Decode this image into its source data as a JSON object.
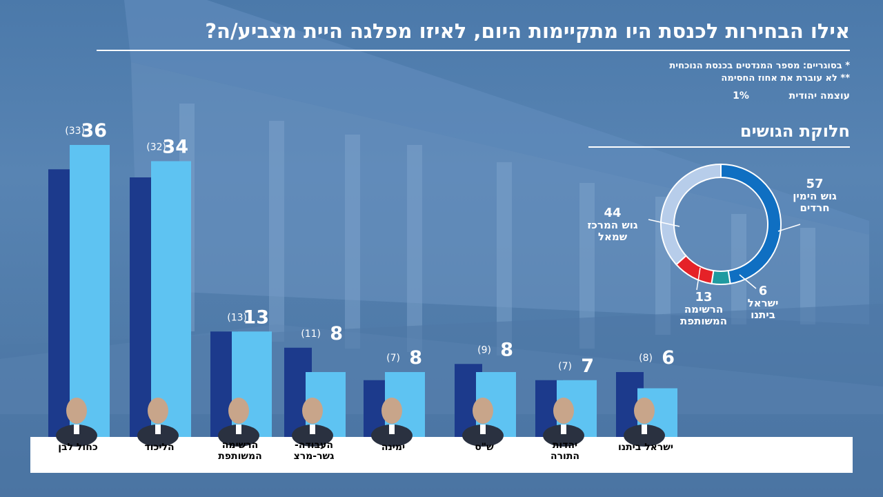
{
  "title": "אילו הבחירות לכנסת היו מתקיימות היום, לאיזו מפלגה היית מצביע/ה?",
  "notes": [
    "* בסוגריים: מספר המנדטים בכנסת הנוכחית",
    "** לא עוברת את אחוז החסימה"
  ],
  "sub_below_threshold": {
    "party": "עוצמה יהודית",
    "value": "1%"
  },
  "blocs_title": "חלוקת הגושים",
  "colors": {
    "current": "#1c3a8c",
    "poll": "#5ec3f2",
    "right_bloc": "#0f6fc2",
    "left_bloc": "#b7cdea",
    "joint_list": "#e52228",
    "yisrael_beytenu": "#1f9aa0"
  },
  "chart_data": [
    {
      "type": "bar",
      "categories": [
        "כחול לבן",
        "הליכוד",
        "הרשימה המשותפת",
        "העבודה-גשר-מרצ",
        "ימינה",
        "ש\"ס",
        "יהדות התורה",
        "ישראל ביתנו"
      ],
      "category_lines": [
        [
          "כחול לבן"
        ],
        [
          "הליכוד"
        ],
        [
          "הרשימה",
          "המשותפת"
        ],
        [
          "העבודה-",
          "גשר-מרצ"
        ],
        [
          "ימינה"
        ],
        [
          "ש\"ס"
        ],
        [
          "יהדות",
          "התורה"
        ],
        [
          "ישראל ביתנו"
        ]
      ],
      "series": [
        {
          "values": [
            33,
            32,
            13,
            11,
            7,
            9,
            7,
            8
          ]
        },
        {
          "values": [
            36,
            34,
            13,
            8,
            8,
            8,
            7,
            6
          ]
        }
      ],
      "value_labels": [
        "36",
        "34",
        "13",
        "8",
        "8",
        "8",
        "7",
        "6"
      ],
      "current_labels": [
        "(33)",
        "(32)",
        "(13)",
        "(11)",
        "(7)",
        "(9)",
        "(7)",
        "(8)"
      ]
    },
    {
      "type": "pie",
      "title": "חלוקת הגושים",
      "slices": [
        {
          "value": 57,
          "label_lines": [
            "57",
            "גוש הימין",
            "חרדים"
          ]
        },
        {
          "value": 6,
          "label_lines": [
            "6",
            "ישראל",
            "ביתנו"
          ]
        },
        {
          "value": 13,
          "label_lines": [
            "13",
            "הרשימה",
            "המשותפת"
          ]
        },
        {
          "value": 44,
          "label_lines": [
            "44",
            "גוש המרכז",
            "שמאל"
          ]
        }
      ]
    }
  ]
}
